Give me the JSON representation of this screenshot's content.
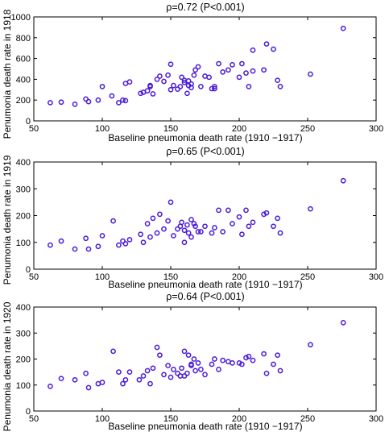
{
  "chart_data": [
    {
      "type": "scatter",
      "title": "ρ=0.72 (P<0.001)",
      "xlabel": "Baseline pneumonia death rate (1910 −1917)",
      "ylabel": "Penumonia death rate in 1918",
      "xlim": [
        50,
        300
      ],
      "ylim": [
        0,
        1000
      ],
      "xticks": [
        "50",
        "100",
        "150",
        "200",
        "250",
        "300"
      ],
      "yticks": [
        "0",
        "200",
        "400",
        "600",
        "800",
        "1000"
      ],
      "marker_color": "#4b1ad6",
      "grid": false,
      "series": [
        {
          "x": [
            62,
            70,
            80,
            88,
            90,
            97,
            100,
            107,
            112,
            115,
            117,
            117,
            120,
            128,
            130,
            133,
            135,
            135,
            137,
            140,
            142,
            145,
            148,
            150,
            150,
            152,
            155,
            157,
            158,
            160,
            160,
            162,
            163,
            163,
            165,
            165,
            167,
            168,
            170,
            172,
            175,
            178,
            180,
            182,
            182,
            185,
            188,
            192,
            195,
            200,
            202,
            205,
            207,
            210,
            210,
            218,
            220,
            225,
            228,
            230,
            252,
            276
          ],
          "y": [
            175,
            180,
            160,
            210,
            185,
            200,
            330,
            240,
            175,
            200,
            360,
            195,
            375,
            265,
            275,
            290,
            340,
            330,
            260,
            400,
            430,
            380,
            440,
            300,
            545,
            340,
            305,
            330,
            420,
            390,
            370,
            265,
            340,
            385,
            355,
            320,
            440,
            490,
            520,
            330,
            430,
            420,
            310,
            310,
            330,
            550,
            470,
            490,
            540,
            420,
            550,
            460,
            330,
            480,
            680,
            490,
            740,
            690,
            390,
            330,
            450,
            890
          ]
        }
      ]
    },
    {
      "type": "scatter",
      "title": "ρ=0.65 (P<0.001)",
      "xlabel": "Baseline pneumonia death rate (1910 −1917)",
      "ylabel": "Penumonia death rate in 1919",
      "xlim": [
        50,
        300
      ],
      "ylim": [
        0,
        400
      ],
      "xticks": [
        "50",
        "100",
        "150",
        "200",
        "250",
        "300"
      ],
      "yticks": [
        "0",
        "100",
        "200",
        "300",
        "400"
      ],
      "marker_color": "#4b1ad6",
      "grid": false,
      "series": [
        {
          "x": [
            62,
            70,
            80,
            88,
            90,
            97,
            100,
            108,
            112,
            115,
            117,
            120,
            128,
            130,
            133,
            135,
            137,
            140,
            142,
            145,
            148,
            150,
            152,
            155,
            157,
            158,
            160,
            160,
            162,
            163,
            165,
            165,
            167,
            168,
            170,
            172,
            175,
            180,
            182,
            185,
            188,
            192,
            195,
            200,
            202,
            205,
            207,
            210,
            218,
            220,
            225,
            228,
            230,
            252,
            276
          ],
          "y": [
            90,
            105,
            75,
            115,
            75,
            85,
            125,
            180,
            90,
            105,
            95,
            110,
            130,
            100,
            170,
            120,
            190,
            135,
            205,
            150,
            180,
            250,
            125,
            150,
            160,
            175,
            100,
            145,
            165,
            135,
            185,
            120,
            170,
            160,
            140,
            140,
            160,
            135,
            155,
            220,
            140,
            220,
            170,
            195,
            130,
            220,
            160,
            175,
            205,
            210,
            160,
            190,
            135,
            225,
            330
          ]
        }
      ]
    },
    {
      "type": "scatter",
      "title": "ρ=0.64 (P<0.001)",
      "xlabel": "Baseline pneumonia death rate (1910 −1917)",
      "ylabel": "Penumonia death rate in 1920",
      "xlim": [
        50,
        300
      ],
      "ylim": [
        0,
        400
      ],
      "xticks": [
        "50",
        "100",
        "150",
        "200",
        "250",
        "300"
      ],
      "yticks": [
        "0",
        "100",
        "200",
        "300",
        "400"
      ],
      "marker_color": "#4b1ad6",
      "grid": false,
      "series": [
        {
          "x": [
            62,
            70,
            80,
            88,
            90,
            97,
            100,
            108,
            112,
            115,
            117,
            120,
            127,
            130,
            133,
            135,
            137,
            140,
            142,
            145,
            148,
            150,
            152,
            155,
            157,
            158,
            160,
            160,
            162,
            163,
            165,
            165,
            167,
            168,
            170,
            172,
            175,
            180,
            182,
            185,
            188,
            192,
            195,
            200,
            202,
            205,
            207,
            210,
            218,
            220,
            225,
            228,
            230,
            252,
            276
          ],
          "y": [
            95,
            125,
            120,
            145,
            90,
            105,
            110,
            230,
            150,
            105,
            120,
            150,
            120,
            135,
            155,
            105,
            165,
            245,
            215,
            140,
            175,
            130,
            160,
            145,
            135,
            165,
            230,
            135,
            145,
            215,
            175,
            180,
            200,
            155,
            185,
            160,
            140,
            180,
            200,
            160,
            195,
            190,
            185,
            185,
            180,
            205,
            210,
            195,
            220,
            145,
            180,
            215,
            155,
            255,
            340
          ]
        }
      ]
    }
  ]
}
